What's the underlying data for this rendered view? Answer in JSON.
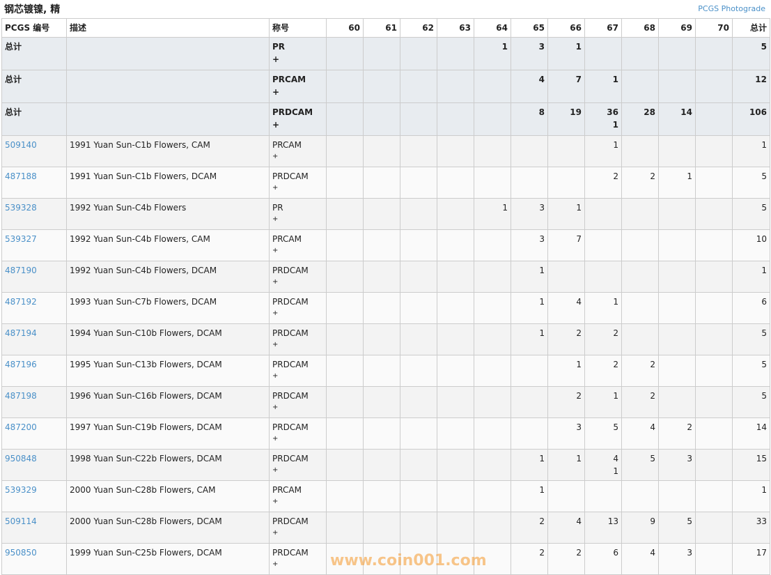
{
  "title": "钢芯镀镍, 精",
  "photograde_link": "PCGS Photograde",
  "watermark": "www.coin001.com",
  "headers": [
    "PCGS 编号",
    "描述",
    "称号",
    "60",
    "61",
    "62",
    "63",
    "64",
    "65",
    "66",
    "67",
    "68",
    "69",
    "70",
    "总计"
  ],
  "summary_rows": [
    {
      "label": "总计",
      "desig": "PR",
      "plus": "+",
      "grades": [
        "",
        "",
        "",
        "",
        "1",
        "3",
        "1",
        "",
        "",
        "",
        ""
      ],
      "total": "5"
    },
    {
      "label": "总计",
      "desig": "PRCAM",
      "plus": "+",
      "grades": [
        "",
        "",
        "",
        "",
        "",
        "4",
        "7",
        "1",
        "",
        "",
        ""
      ],
      "total": "12"
    },
    {
      "label": "总计",
      "desig": "PRDCAM",
      "plus": "+",
      "grades": [
        "",
        "",
        "",
        "",
        "",
        "8",
        "19",
        "36\n1",
        "28",
        "14",
        ""
      ],
      "total": "106"
    }
  ],
  "rows": [
    {
      "id": "509140",
      "desc": "1991 Yuan Sun-C1b Flowers, CAM",
      "desig": "PRCAM",
      "plus": "+",
      "grades": [
        "",
        "",
        "",
        "",
        "",
        "",
        "",
        "1",
        "",
        "",
        ""
      ],
      "total": "1"
    },
    {
      "id": "487188",
      "desc": "1991 Yuan Sun-C1b Flowers, DCAM",
      "desig": "PRDCAM",
      "plus": "+",
      "grades": [
        "",
        "",
        "",
        "",
        "",
        "",
        "",
        "2",
        "2",
        "1",
        ""
      ],
      "total": "5"
    },
    {
      "id": "539328",
      "desc": "1992 Yuan Sun-C4b Flowers",
      "desig": "PR",
      "plus": "+",
      "grades": [
        "",
        "",
        "",
        "",
        "1",
        "3",
        "1",
        "",
        "",
        "",
        ""
      ],
      "total": "5"
    },
    {
      "id": "539327",
      "desc": "1992 Yuan Sun-C4b Flowers, CAM",
      "desig": "PRCAM",
      "plus": "+",
      "grades": [
        "",
        "",
        "",
        "",
        "",
        "3",
        "7",
        "",
        "",
        "",
        ""
      ],
      "total": "10"
    },
    {
      "id": "487190",
      "desc": "1992 Yuan Sun-C4b Flowers, DCAM",
      "desig": "PRDCAM",
      "plus": "+",
      "grades": [
        "",
        "",
        "",
        "",
        "",
        "1",
        "",
        "",
        "",
        "",
        ""
      ],
      "total": "1"
    },
    {
      "id": "487192",
      "desc": "1993 Yuan Sun-C7b Flowers, DCAM",
      "desig": "PRDCAM",
      "plus": "+",
      "grades": [
        "",
        "",
        "",
        "",
        "",
        "1",
        "4",
        "1",
        "",
        "",
        ""
      ],
      "total": "6"
    },
    {
      "id": "487194",
      "desc": "1994 Yuan Sun-C10b Flowers, DCAM",
      "desig": "PRDCAM",
      "plus": "+",
      "grades": [
        "",
        "",
        "",
        "",
        "",
        "1",
        "2",
        "2",
        "",
        "",
        ""
      ],
      "total": "5"
    },
    {
      "id": "487196",
      "desc": "1995 Yuan Sun-C13b Flowers, DCAM",
      "desig": "PRDCAM",
      "plus": "+",
      "grades": [
        "",
        "",
        "",
        "",
        "",
        "",
        "1",
        "2",
        "2",
        "",
        ""
      ],
      "total": "5"
    },
    {
      "id": "487198",
      "desc": "1996 Yuan Sun-C16b Flowers, DCAM",
      "desig": "PRDCAM",
      "plus": "+",
      "grades": [
        "",
        "",
        "",
        "",
        "",
        "",
        "2",
        "1",
        "2",
        "",
        ""
      ],
      "total": "5"
    },
    {
      "id": "487200",
      "desc": "1997 Yuan Sun-C19b Flowers, DCAM",
      "desig": "PRDCAM",
      "plus": "+",
      "grades": [
        "",
        "",
        "",
        "",
        "",
        "",
        "3",
        "5",
        "4",
        "2",
        ""
      ],
      "total": "14"
    },
    {
      "id": "950848",
      "desc": "1998 Yuan Sun-C22b Flowers, DCAM",
      "desig": "PRDCAM",
      "plus": "+",
      "grades": [
        "",
        "",
        "",
        "",
        "",
        "1",
        "1",
        "4\n1",
        "5",
        "3",
        ""
      ],
      "total": "15"
    },
    {
      "id": "539329",
      "desc": "2000 Yuan Sun-C28b Flowers, CAM",
      "desig": "PRCAM",
      "plus": "+",
      "grades": [
        "",
        "",
        "",
        "",
        "",
        "1",
        "",
        "",
        "",
        "",
        ""
      ],
      "total": "1"
    },
    {
      "id": "509114",
      "desc": "2000 Yuan Sun-C28b Flowers, DCAM",
      "desig": "PRDCAM",
      "plus": "+",
      "grades": [
        "",
        "",
        "",
        "",
        "",
        "2",
        "4",
        "13",
        "9",
        "5",
        ""
      ],
      "total": "33"
    },
    {
      "id": "950850",
      "desc": "1999 Yuan Sun-C25b Flowers, DCAM",
      "desig": "PRDCAM",
      "plus": "+",
      "grades": [
        "",
        "",
        "",
        "",
        "",
        "2",
        "2",
        "6",
        "4",
        "3",
        ""
      ],
      "total": "17"
    }
  ]
}
